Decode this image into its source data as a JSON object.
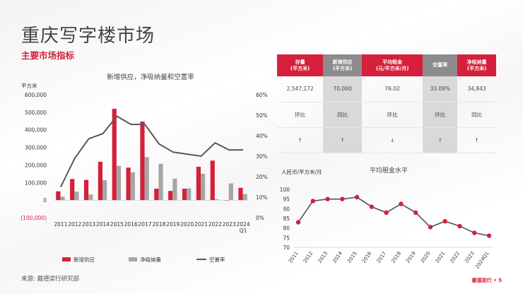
{
  "header": {
    "title": "重庆写字楼市场",
    "subtitle": "主要市场指标"
  },
  "source": "来源: 戴德梁行研究部",
  "footer": "戴德梁行 • 5",
  "kpi_table": {
    "headers": [
      {
        "line1": "存量",
        "line2": "(平方米)",
        "style": "red"
      },
      {
        "line1": "新增供应",
        "line2": "(平方米)",
        "style": "gray"
      },
      {
        "line1": "平均租金",
        "line2": "(元/平方米/月)",
        "style": "red"
      },
      {
        "line1": "空置率",
        "line2": "",
        "style": "gray"
      },
      {
        "line1": "净吸纳量",
        "line2": "(平方米)",
        "style": "red"
      }
    ],
    "values": [
      "2,547,172",
      "70,000",
      "76.02",
      "33.09%",
      "34,843"
    ],
    "compare": [
      "环比",
      "同比",
      "环比",
      "环比",
      "同比"
    ],
    "trend": [
      "↑",
      "↑",
      "↓",
      "↑",
      "↑"
    ]
  },
  "chart_data": [
    {
      "type": "bar",
      "title": "新增供应，净吸纳量和空置率",
      "ylabel": "平方米",
      "categories": [
        "2011",
        "2012",
        "2013",
        "2014",
        "2015",
        "2016",
        "2017",
        "2018",
        "2019",
        "2020",
        "2021",
        "2022",
        "2023",
        "2024 Q1"
      ],
      "ylim": [
        -100000,
        600000
      ],
      "y_ticks": [
        "(100,000)",
        "0",
        "100,000",
        "200,000",
        "300,000",
        "400,000",
        "500,000",
        "600,000"
      ],
      "y2lim": [
        0,
        0.6
      ],
      "y2_ticks": [
        "0%",
        "10%",
        "20%",
        "30%",
        "40%",
        "50%",
        "60%"
      ],
      "series": [
        {
          "name": "新增供应",
          "kind": "bar",
          "color": "#d61f3a",
          "values": [
            50000,
            120000,
            115000,
            218000,
            520000,
            185000,
            447000,
            65000,
            52000,
            65000,
            190000,
            225000,
            0,
            70000
          ]
        },
        {
          "name": "净吸纳量",
          "kind": "bar",
          "color": "#a6a6a6",
          "values": [
            20000,
            48000,
            32000,
            113000,
            195000,
            158000,
            245000,
            207000,
            122000,
            67000,
            150000,
            5000,
            95000,
            34843
          ]
        },
        {
          "name": "空置率",
          "kind": "line",
          "color": "#595959",
          "axis": "right",
          "values": [
            0.15,
            0.29,
            0.385,
            0.41,
            0.495,
            0.455,
            0.455,
            0.36,
            0.32,
            0.31,
            0.3,
            0.365,
            0.33,
            0.331
          ]
        }
      ],
      "legend": "bottom"
    },
    {
      "type": "line",
      "title": "平均租金水平",
      "ylabel": "人民币/平方米/月",
      "categories": [
        "2011",
        "2012",
        "2013",
        "2014",
        "2015",
        "2016",
        "2017",
        "2018",
        "2019",
        "2020",
        "2021",
        "2022",
        "2023",
        "2024Q1"
      ],
      "ylim": [
        70,
        100
      ],
      "y_ticks": [
        "70",
        "75",
        "80",
        "85",
        "90",
        "95",
        "100"
      ],
      "series": [
        {
          "name": "",
          "color": "#d61f3a",
          "values": [
            83,
            94,
            95,
            95,
            96,
            91,
            88,
            92.5,
            88,
            80.5,
            83.5,
            81,
            77.5,
            76.02
          ]
        }
      ]
    }
  ]
}
